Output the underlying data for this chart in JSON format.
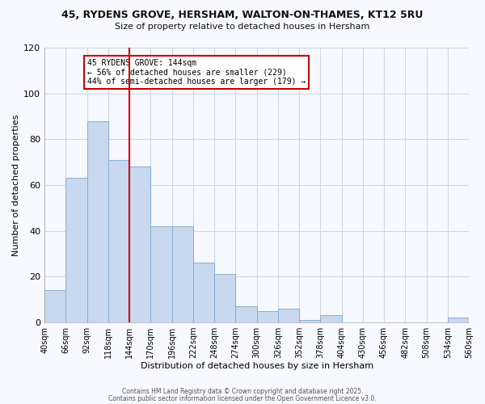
{
  "title": "45, RYDENS GROVE, HERSHAM, WALTON-ON-THAMES, KT12 5RU",
  "subtitle": "Size of property relative to detached houses in Hersham",
  "bar_heights": [
    14,
    63,
    88,
    71,
    68,
    42,
    42,
    26,
    21,
    7,
    5,
    6,
    1,
    3,
    0,
    0,
    0,
    0,
    0,
    2
  ],
  "bin_labels": [
    "40sqm",
    "66sqm",
    "92sqm",
    "118sqm",
    "144sqm",
    "170sqm",
    "196sqm",
    "222sqm",
    "248sqm",
    "274sqm",
    "300sqm",
    "326sqm",
    "352sqm",
    "378sqm",
    "404sqm",
    "430sqm",
    "456sqm",
    "482sqm",
    "508sqm",
    "534sqm",
    "560sqm"
  ],
  "bar_color": "#c8d8ee",
  "bar_edgecolor": "#7aaad0",
  "vline_color": "#cc0000",
  "annotation_title": "45 RYDENS GROVE: 144sqm",
  "annotation_line2": "← 56% of detached houses are smaller (229)",
  "annotation_line3": "44% of semi-detached houses are larger (179) →",
  "annotation_box_color": "#ffffff",
  "annotation_box_edge": "#cc0000",
  "xlabel": "Distribution of detached houses by size in Hersham",
  "ylabel": "Number of detached properties",
  "ylim": [
    0,
    120
  ],
  "yticks": [
    0,
    20,
    40,
    60,
    80,
    100,
    120
  ],
  "footer1": "Contains HM Land Registry data © Crown copyright and database right 2025.",
  "footer2": "Contains public sector information licensed under the Open Government Licence v3.0.",
  "bg_color": "#f8f8ff",
  "grid_color": "#ccd8e8"
}
